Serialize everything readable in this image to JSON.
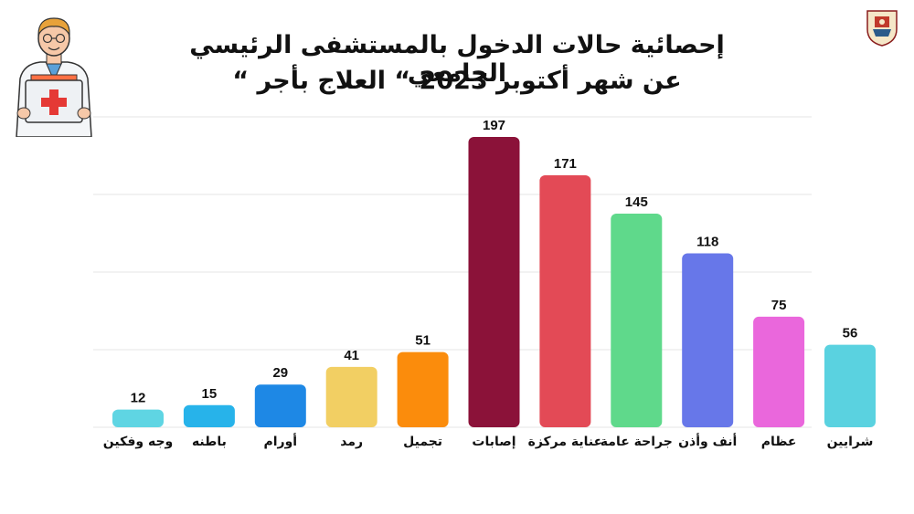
{
  "chart_data": {
    "type": "bar",
    "title_line1": "إحصائية حالات الدخول بالمستشفى الرئيسي الجامعي",
    "title_line2": "عن شهر أكتوبر 2023 “ العلاج بأجر “",
    "categories": [
      "وجه وفكين",
      "باطنه",
      "أورام",
      "رمد",
      "تجميل",
      "إصابات",
      "عناية مركزة",
      "جراحة عامة",
      "أنف وأذن",
      "عظام",
      "شرايين"
    ],
    "values": [
      12,
      15,
      29,
      41,
      51,
      197,
      171,
      145,
      118,
      75,
      56
    ],
    "colors": [
      "#5fd5e3",
      "#27b3ea",
      "#1e88e5",
      "#f2cf63",
      "#fb8c0c",
      "#8b1239",
      "#e34a56",
      "#5fd98b",
      "#6777e9",
      "#ea67dc",
      "#5ad2e0"
    ],
    "grid": true,
    "xlabel": "",
    "ylabel": ""
  },
  "icons": {
    "doctor": "doctor-with-first-aid-kit-illustration",
    "logo": "university-emblem-logo"
  }
}
